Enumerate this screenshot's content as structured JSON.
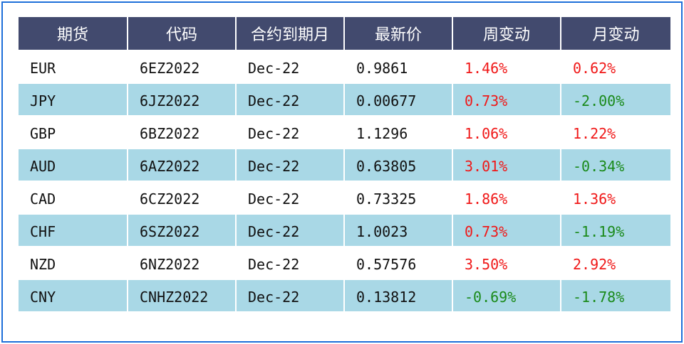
{
  "table": {
    "headers": [
      "期货",
      "代码",
      "合约到期月",
      "最新价",
      "周变动",
      "月变动"
    ],
    "rows": [
      {
        "currency": "EUR",
        "code": "6EZ2022",
        "expiry": "Dec-22",
        "price": "0.9861",
        "week": "1.46%",
        "month": "0.62%"
      },
      {
        "currency": "JPY",
        "code": "6JZ2022",
        "expiry": "Dec-22",
        "price": "0.00677",
        "week": "0.73%",
        "month": "-2.00%"
      },
      {
        "currency": "GBP",
        "code": "6BZ2022",
        "expiry": "Dec-22",
        "price": "1.1296",
        "week": "1.06%",
        "month": "1.22%"
      },
      {
        "currency": "AUD",
        "code": "6AZ2022",
        "expiry": "Dec-22",
        "price": "0.63805",
        "week": "3.01%",
        "month": "-0.34%"
      },
      {
        "currency": "CAD",
        "code": "6CZ2022",
        "expiry": "Dec-22",
        "price": "0.73325",
        "week": "1.86%",
        "month": "1.36%"
      },
      {
        "currency": "CHF",
        "code": "6SZ2022",
        "expiry": "Dec-22",
        "price": "1.0023",
        "week": "0.73%",
        "month": "-1.19%"
      },
      {
        "currency": "NZD",
        "code": "6NZ2022",
        "expiry": "Dec-22",
        "price": "0.57576",
        "week": "3.50%",
        "month": "2.92%"
      },
      {
        "currency": "CNY",
        "code": "CNHZ2022",
        "expiry": "Dec-22",
        "price": "0.13812",
        "week": "-0.69%",
        "month": "-1.78%"
      }
    ]
  },
  "colors": {
    "header_bg": "#424a6e",
    "band_bg": "#a9d8e6",
    "positive": "#f01818",
    "negative": "#1a8a1a",
    "frame": "#1e6fd9"
  }
}
